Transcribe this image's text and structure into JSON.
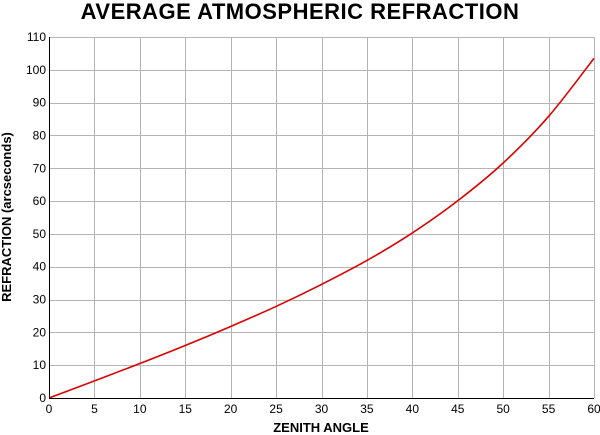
{
  "chart_data": {
    "type": "line",
    "title": "AVERAGE ATMOSPHERIC REFRACTION",
    "xlabel": "ZENITH ANGLE",
    "ylabel": "REFRACTION (arcseconds)",
    "xlim": [
      0,
      60
    ],
    "ylim": [
      0,
      110
    ],
    "x_ticks": [
      0,
      5,
      10,
      15,
      20,
      25,
      30,
      35,
      40,
      45,
      50,
      55,
      60
    ],
    "y_ticks": [
      0,
      10,
      20,
      30,
      40,
      50,
      60,
      70,
      80,
      90,
      100,
      110
    ],
    "grid": true,
    "legend": "none",
    "series": [
      {
        "color": "#dd0000",
        "x": [
          0,
          5,
          10,
          15,
          20,
          25,
          30,
          35,
          40,
          45,
          50,
          55,
          60
        ],
        "y": [
          0,
          5.2,
          10.5,
          16.0,
          21.8,
          27.9,
          34.6,
          41.9,
          50.3,
          60.1,
          71.6,
          85.8,
          103.5
        ]
      }
    ],
    "colors": {
      "grid": "#b4b4b4",
      "axis": "#000000",
      "line": "#dd0000"
    }
  }
}
